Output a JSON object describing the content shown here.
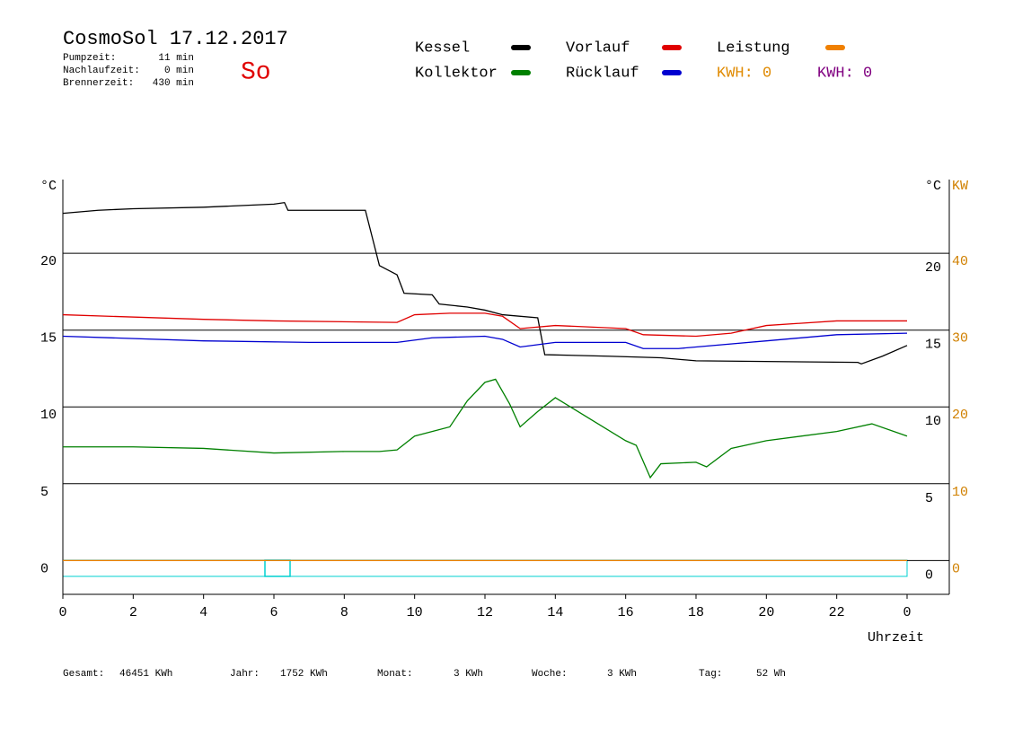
{
  "chart_data": {
    "type": "line",
    "title": "CosmoSol 17.12.2017",
    "day": "So",
    "stats": [
      {
        "label": "Pumpzeit:",
        "value": "11 min"
      },
      {
        "label": "Nachlaufzeit:",
        "value": "0 min"
      },
      {
        "label": "Brennerzeit:",
        "value": "430 min"
      }
    ],
    "kwh": [
      {
        "text": "KWH: 0",
        "color": "#e08a00"
      },
      {
        "text": "KWH: 0",
        "color": "#800080"
      }
    ],
    "y_unit": "°C",
    "y2_unit": "KW",
    "xlabel": "Uhrzeit",
    "xlim": [
      0,
      25.2
    ],
    "xticks": [
      0,
      2,
      4,
      6,
      8,
      10,
      12,
      14,
      16,
      18,
      20,
      22,
      {
        "value": 24,
        "label": "0"
      }
    ],
    "ylim": [
      -2.2,
      24.8
    ],
    "yticks": [
      0,
      5,
      10,
      15,
      20
    ],
    "y2lim": [
      -4.4,
      49.6
    ],
    "y2ticks": [
      0,
      10,
      20,
      30,
      40
    ],
    "grid": true,
    "series": [
      {
        "name": "Kessel",
        "color": "#000000",
        "x": [
          0,
          1,
          2,
          4,
          6,
          6.3,
          6.4,
          8.6,
          8.8,
          9,
          9.5,
          9.7,
          10.5,
          10.7,
          11.5,
          12,
          12.5,
          13.5,
          13.7,
          15.5,
          17,
          18,
          22.6,
          22.7,
          23.3,
          24
        ],
        "values": [
          22.6,
          22.8,
          22.9,
          23.0,
          23.2,
          23.3,
          22.8,
          22.8,
          21,
          19.2,
          18.6,
          17.4,
          17.3,
          16.7,
          16.5,
          16.3,
          16.0,
          15.8,
          13.4,
          13.3,
          13.2,
          13.0,
          12.9,
          12.8,
          13.3,
          14.0
        ]
      },
      {
        "name": "Kollektor",
        "color": "#008000",
        "x": [
          0,
          2,
          4,
          6,
          8,
          9,
          9.5,
          10,
          11,
          11.5,
          12,
          12.3,
          12.7,
          13,
          13.5,
          14,
          14.5,
          15,
          16,
          16.3,
          16.7,
          17,
          18,
          18.3,
          19,
          20,
          22,
          23,
          24
        ],
        "values": [
          7.4,
          7.4,
          7.3,
          7.0,
          7.1,
          7.1,
          7.2,
          8.1,
          8.7,
          10.4,
          11.6,
          11.8,
          10.2,
          8.7,
          9.7,
          10.6,
          9.9,
          9.2,
          7.8,
          7.5,
          5.4,
          6.3,
          6.4,
          6.1,
          7.3,
          7.8,
          8.4,
          8.9,
          8.1
        ]
      },
      {
        "name": "Vorlauf",
        "color": "#e00000",
        "x": [
          0,
          4,
          6,
          9.5,
          10,
          11,
          12,
          12.5,
          13,
          14,
          16,
          16.5,
          18,
          19,
          20,
          22,
          24
        ],
        "values": [
          16.0,
          15.7,
          15.6,
          15.5,
          16.0,
          16.1,
          16.1,
          15.9,
          15.1,
          15.3,
          15.1,
          14.7,
          14.6,
          14.8,
          15.3,
          15.6,
          15.6
        ]
      },
      {
        "name": "Rücklauf",
        "color": "#0000d0",
        "x": [
          0,
          4,
          7,
          9.5,
          10.5,
          12,
          12.5,
          13,
          14,
          16,
          16.5,
          17.5,
          18,
          20,
          22,
          24
        ],
        "values": [
          14.6,
          14.3,
          14.2,
          14.2,
          14.5,
          14.6,
          14.4,
          13.9,
          14.2,
          14.2,
          13.8,
          13.8,
          13.9,
          14.3,
          14.7,
          14.8
        ]
      },
      {
        "name": "Leistung",
        "color": "#f08000",
        "axis": "y2",
        "x": [
          0,
          24
        ],
        "values": [
          0,
          0
        ]
      }
    ],
    "totals": [
      {
        "label": "Gesamt:",
        "value": "46451 KWh"
      },
      {
        "label": "Jahr:",
        "value": "1752 KWh"
      },
      {
        "label": "Monat:",
        "value": "3 KWh"
      },
      {
        "label": "Woche:",
        "value": "3 KWh"
      },
      {
        "label": "Tag:",
        "value": "52 Wh"
      }
    ]
  }
}
